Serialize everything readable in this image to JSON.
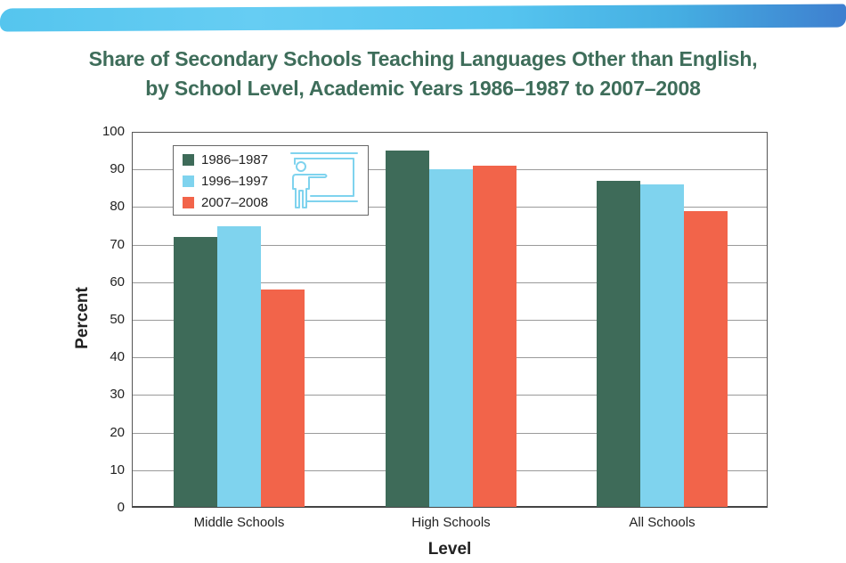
{
  "header": {
    "brush_colors": [
      "#55c5ee",
      "#3e7fcf"
    ]
  },
  "chart_data": {
    "type": "bar",
    "title": "Share of Secondary Schools Teaching Languages Other than English, by School Level, Academic Years 1986–1987 to 2007–2008",
    "title_lines": [
      "Share of Secondary Schools Teaching Languages Other than English,",
      "by School Level, Academic Years 1986–1987 to 2007–2008"
    ],
    "xlabel": "Level",
    "ylabel": "Percent",
    "categories": [
      "Middle Schools",
      "High Schools",
      "All Schools"
    ],
    "series": [
      {
        "name": "1986–1987",
        "color": "#3e6b59",
        "values": [
          72,
          95,
          87
        ]
      },
      {
        "name": "1996–1997",
        "color": "#7fd3ee",
        "values": [
          75,
          90,
          86
        ]
      },
      {
        "name": "2007–2008",
        "color": "#f2644a",
        "values": [
          58,
          91,
          79
        ]
      }
    ],
    "ylim": [
      0,
      100
    ],
    "yticks": [
      "0",
      "10",
      "20",
      "30",
      "40",
      "50",
      "60",
      "70",
      "80",
      "90",
      "100"
    ],
    "grid": true,
    "legend_position": "upper-left",
    "legend_icon": "teacher-at-board-icon"
  }
}
